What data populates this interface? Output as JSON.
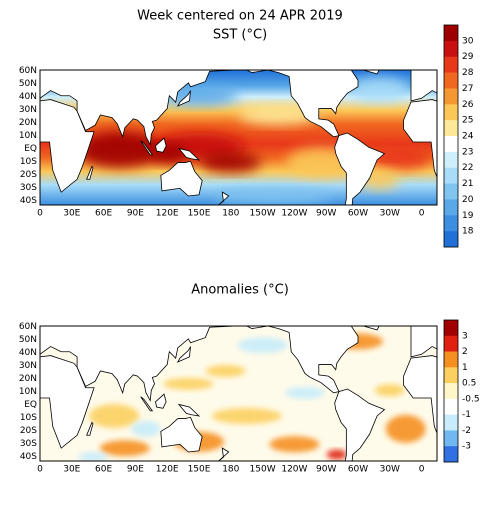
{
  "top_panel": {
    "title": "Week centered on 24 APR 2019",
    "subtitle": "SST (°C)",
    "lat_labels": [
      "60N",
      "50N",
      "40N",
      "30N",
      "20N",
      "10N",
      "EQ",
      "10S",
      "20S",
      "30S",
      "40S"
    ],
    "lon_labels": [
      "0",
      "30E",
      "60E",
      "90E",
      "120E",
      "150E",
      "180",
      "150W",
      "120W",
      "90W",
      "60W",
      "30W",
      "0"
    ],
    "colorbar_labels": [
      30,
      29,
      28,
      27,
      26,
      25,
      24,
      23,
      22,
      21,
      20,
      19,
      18
    ],
    "colors": [
      "#9e0000",
      "#c81010",
      "#e8381a",
      "#f06820",
      "#f59832",
      "#fbc858",
      "#fde89a",
      "#ffffff",
      "#cfeffc",
      "#a8dcf8",
      "#80c4f0",
      "#5aa8e8",
      "#3c8ee0",
      "#2070d8"
    ]
  },
  "bottom_panel": {
    "title": "Anomalies (°C)",
    "lat_labels": [
      "60N",
      "50N",
      "40N",
      "30N",
      "20N",
      "10N",
      "EQ",
      "10S",
      "20S",
      "30S",
      "40S"
    ],
    "lon_labels": [
      "0",
      "30E",
      "60E",
      "90E",
      "120E",
      "150E",
      "180",
      "150W",
      "120W",
      "90W",
      "60W",
      "30W",
      "0"
    ],
    "colorbar_labels": [
      3,
      2,
      1,
      0.5,
      -0.5,
      -1,
      -2,
      -3
    ],
    "colors": [
      "#a00000",
      "#e02010",
      "#f59020",
      "#fbd060",
      "#fff7c8",
      "#ffffff",
      "#c8ecfa",
      "#70b8f0",
      "#3070e0"
    ]
  }
}
